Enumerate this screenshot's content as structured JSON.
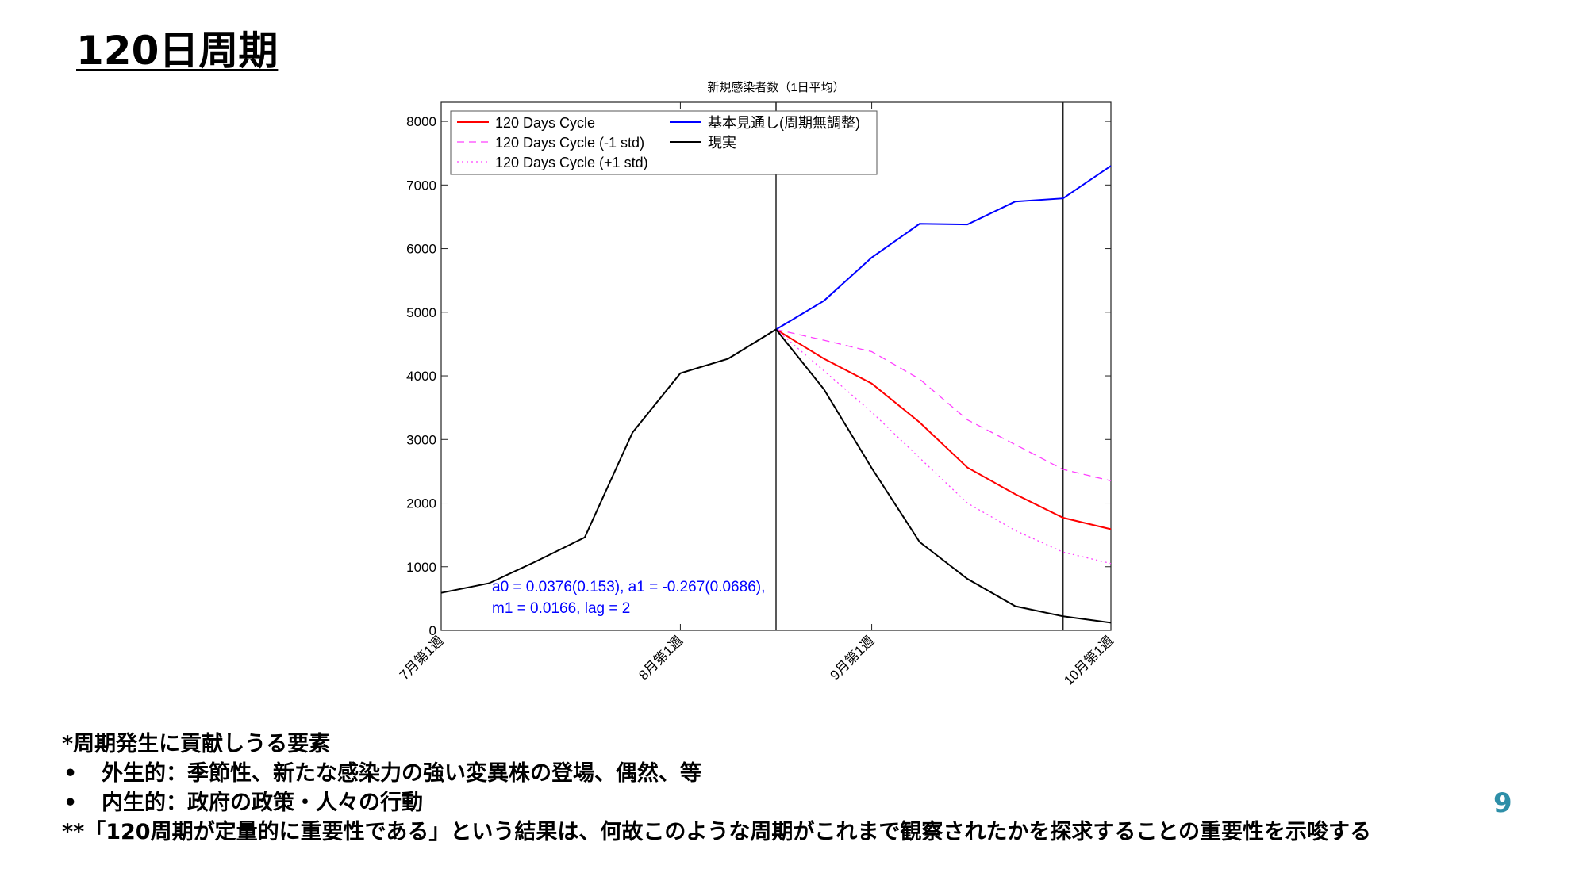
{
  "slide": {
    "title": "120日周期",
    "page_number": "9"
  },
  "chart_data": {
    "type": "line",
    "title": "新規感染者数（1日平均）",
    "xlabel": "",
    "ylabel": "",
    "x_ticks": [
      "7月第1週",
      "8月第1週",
      "9月第1週",
      "10月第1週"
    ],
    "x_tick_weeks": [
      0,
      5,
      9,
      14
    ],
    "xlim": [
      0,
      14
    ],
    "ylim": [
      0,
      8300
    ],
    "y_ticks": [
      0,
      1000,
      2000,
      3000,
      4000,
      5000,
      6000,
      7000,
      8000
    ],
    "grid": false,
    "legend_position": "top-left",
    "vertical_lines_at_week": [
      7,
      13
    ],
    "series": [
      {
        "name": "120 Days Cycle",
        "color": "#ff0000",
        "dash": "solid",
        "x": [
          7,
          8,
          9,
          10,
          11,
          12,
          13,
          14
        ],
        "values": [
          4730,
          4270,
          3880,
          3270,
          2560,
          2140,
          1770,
          1590
        ]
      },
      {
        "name": "120 Days Cycle (-1 std)",
        "color": "#ff40ff",
        "dash": "dashed",
        "x": [
          7,
          8,
          9,
          10,
          11,
          12,
          13,
          14
        ],
        "values": [
          4730,
          4560,
          4380,
          3950,
          3310,
          2920,
          2530,
          2350
        ]
      },
      {
        "name": "120 Days Cycle (+1 std)",
        "color": "#ff40ff",
        "dash": "dotted",
        "x": [
          7,
          8,
          9,
          10,
          11,
          12,
          13,
          14
        ],
        "values": [
          4730,
          4080,
          3430,
          2710,
          2000,
          1570,
          1230,
          1050
        ]
      },
      {
        "name": "基本見通し(周期無調整)",
        "color": "#0000ff",
        "dash": "solid",
        "x": [
          7,
          8,
          9,
          10,
          11,
          12,
          13,
          14
        ],
        "values": [
          4730,
          5180,
          5860,
          6390,
          6380,
          6740,
          6790,
          7300
        ]
      },
      {
        "name": "現実",
        "color": "#000000",
        "dash": "solid",
        "x": [
          0,
          1,
          2,
          3,
          4,
          5,
          6,
          7,
          8,
          9,
          10,
          11,
          12,
          13,
          14
        ],
        "values": [
          590,
          740,
          1090,
          1460,
          3110,
          4040,
          4270,
          4730,
          3790,
          2550,
          1390,
          810,
          380,
          220,
          120
        ]
      }
    ],
    "annotation": {
      "lines": [
        "a0 = 0.0376(0.153), a1 = -0.267(0.0686),",
        "m1 = 0.0166, lag = 2"
      ],
      "color": "#0000ff"
    }
  },
  "notes": {
    "heading": "*周期発生に貢献しうる要素",
    "bullets": [
      {
        "symbol": "•",
        "text": "外生的：季節性、新たな感染力の強い変異株の登場、偶然、等"
      },
      {
        "symbol": "•",
        "text": "内生的：政府の政策・人々の行動"
      }
    ],
    "footnote": "**「120周期が定量的に重要性である」という結果は、何故このような周期がこれまで観察されたかを探求することの重要性を示唆する"
  }
}
